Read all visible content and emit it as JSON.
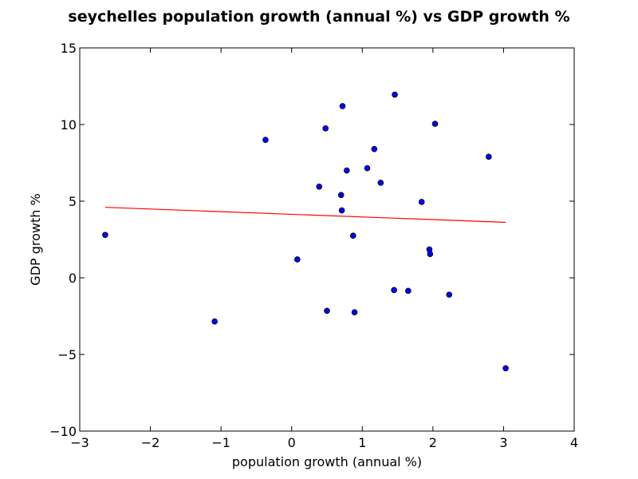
{
  "chart_data": {
    "type": "scatter",
    "title": "seychelles population growth (annual %) vs GDP growth %",
    "xlabel": "population growth (annual %)",
    "ylabel": "GDP growth %",
    "xlim": [
      -3,
      4
    ],
    "ylim": [
      -10,
      15
    ],
    "xticks": [
      -3,
      -2,
      -1,
      0,
      1,
      2,
      3,
      4
    ],
    "xtick_labels": [
      "−3",
      "−2",
      "−1",
      "0",
      "1",
      "2",
      "3",
      "4"
    ],
    "yticks": [
      -10,
      -5,
      0,
      5,
      10,
      15
    ],
    "ytick_labels": [
      "−10",
      "−5",
      "0",
      "5",
      "10",
      "15"
    ],
    "grid": false,
    "series": [
      {
        "marker_color": "#0000ff",
        "points": [
          {
            "x": -2.64,
            "y": 2.8
          },
          {
            "x": -1.09,
            "y": -2.85
          },
          {
            "x": -0.37,
            "y": 9.0
          },
          {
            "x": 0.08,
            "y": 1.2
          },
          {
            "x": 0.39,
            "y": 5.95
          },
          {
            "x": 0.48,
            "y": 9.75
          },
          {
            "x": 0.5,
            "y": -2.15
          },
          {
            "x": 0.7,
            "y": 5.4
          },
          {
            "x": 0.71,
            "y": 4.4
          },
          {
            "x": 0.72,
            "y": 11.2
          },
          {
            "x": 0.78,
            "y": 7.0
          },
          {
            "x": 0.87,
            "y": 2.75
          },
          {
            "x": 0.89,
            "y": -2.25
          },
          {
            "x": 1.07,
            "y": 7.15
          },
          {
            "x": 1.17,
            "y": 8.4
          },
          {
            "x": 1.26,
            "y": 6.2
          },
          {
            "x": 1.45,
            "y": -0.8
          },
          {
            "x": 1.46,
            "y": 11.95
          },
          {
            "x": 1.65,
            "y": -0.85
          },
          {
            "x": 1.84,
            "y": 4.95
          },
          {
            "x": 1.95,
            "y": 1.85
          },
          {
            "x": 1.96,
            "y": 1.55
          },
          {
            "x": 2.03,
            "y": 10.05
          },
          {
            "x": 2.23,
            "y": -1.1
          },
          {
            "x": 2.79,
            "y": 7.9
          },
          {
            "x": 3.03,
            "y": -5.9
          }
        ]
      }
    ],
    "trendline": {
      "color": "#ff0000",
      "x": [
        -2.64,
        3.03
      ],
      "y": [
        4.6,
        3.62
      ]
    }
  }
}
